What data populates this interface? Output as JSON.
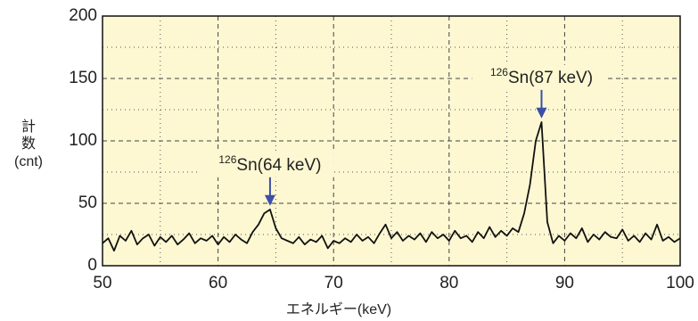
{
  "chart_data": {
    "type": "line",
    "xlabel": "エネルギー(keV)",
    "ylabel": [
      "計",
      "数",
      "(cnt)"
    ],
    "xlim": [
      50,
      100
    ],
    "ylim": [
      0,
      200
    ],
    "xticks": [
      50,
      60,
      70,
      80,
      90,
      100
    ],
    "yticks": [
      0,
      50,
      100,
      150,
      200
    ],
    "minor_xgrid": [
      55,
      65,
      75,
      85,
      95
    ],
    "minor_ygrid": [
      25,
      75,
      125,
      175
    ],
    "grid": true,
    "background": "#fdf8d2",
    "annotations": [
      {
        "sup": "126",
        "text": "Sn(64 keV)",
        "x": 64.5,
        "y": 48
      },
      {
        "sup": "126",
        "text": "Sn(87 keV)",
        "x": 88,
        "y": 118
      }
    ],
    "arrow_color": "#3a4fa8",
    "series": [
      {
        "color": "#111111",
        "x": [
          50,
          50.5,
          51,
          51.5,
          52,
          52.5,
          53,
          53.5,
          54,
          54.5,
          55,
          55.5,
          56,
          56.5,
          57,
          57.5,
          58,
          58.5,
          59,
          59.5,
          60,
          60.5,
          61,
          61.5,
          62,
          62.5,
          63,
          63.5,
          64,
          64.5,
          65,
          65.5,
          66,
          66.5,
          67,
          67.5,
          68,
          68.5,
          69,
          69.5,
          70,
          70.5,
          71,
          71.5,
          72,
          72.5,
          73,
          73.5,
          74,
          74.5,
          75,
          75.5,
          76,
          76.5,
          77,
          77.5,
          78,
          78.5,
          79,
          79.5,
          80,
          80.5,
          81,
          81.5,
          82,
          82.5,
          83,
          83.5,
          84,
          84.5,
          85,
          85.5,
          86,
          86.5,
          87,
          87.5,
          88,
          88.5,
          89,
          89.5,
          90,
          90.5,
          91,
          91.5,
          92,
          92.5,
          93,
          93.5,
          94,
          94.5,
          95,
          95.5,
          96,
          96.5,
          97,
          97.5,
          98,
          98.5,
          99,
          99.5,
          100
        ],
        "values": [
          18,
          22,
          12,
          24,
          20,
          28,
          17,
          22,
          25,
          16,
          23,
          19,
          24,
          17,
          21,
          26,
          18,
          22,
          20,
          24,
          17,
          23,
          19,
          25,
          21,
          18,
          27,
          33,
          42,
          45,
          30,
          22,
          20,
          18,
          23,
          17,
          21,
          19,
          24,
          14,
          20,
          18,
          22,
          19,
          25,
          20,
          23,
          18,
          26,
          33,
          22,
          27,
          20,
          24,
          21,
          26,
          19,
          27,
          22,
          25,
          20,
          28,
          22,
          24,
          19,
          27,
          22,
          31,
          23,
          28,
          24,
          30,
          27,
          42,
          65,
          100,
          115,
          35,
          18,
          24,
          20,
          26,
          22,
          30,
          19,
          25,
          21,
          27,
          23,
          22,
          29,
          20,
          24,
          19,
          26,
          21,
          33,
          20,
          23,
          19,
          22
        ]
      }
    ]
  }
}
